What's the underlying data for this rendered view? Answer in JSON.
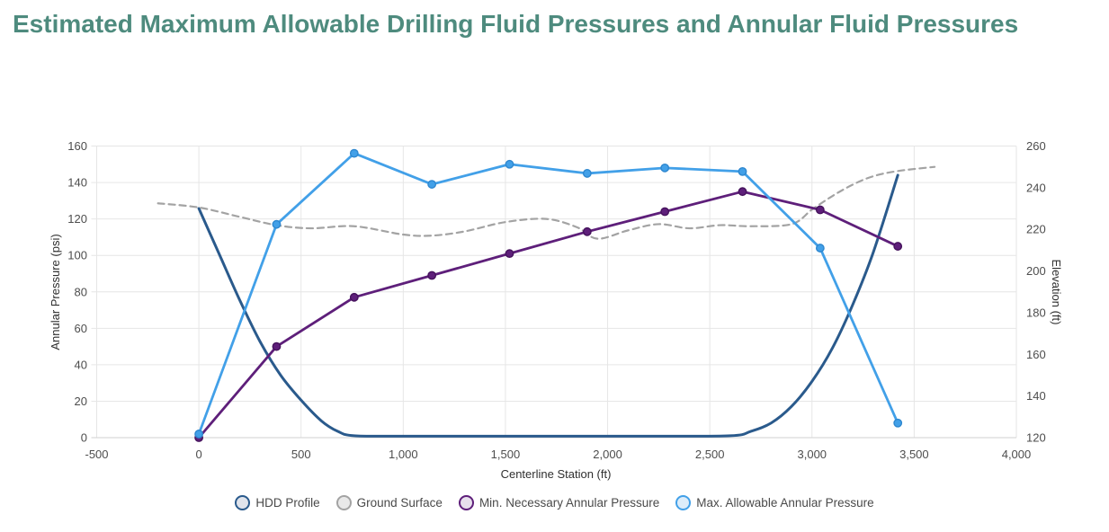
{
  "page": {
    "title": "Estimated Maximum Allowable Drilling Fluid Pressures and Annular Fluid Pressures",
    "title_color": "#4e8b7e",
    "background_color": "#ffffff"
  },
  "chart_data": {
    "type": "line",
    "title": "Estimated Maximum Allowable Drilling Fluid Pressures and Annular Fluid Pressures",
    "grid": true,
    "legend_position": "bottom",
    "x_axis": {
      "label": "Centerline Station (ft)",
      "min": -500,
      "max": 4000,
      "ticks": [
        {
          "v": -500,
          "label": "-500"
        },
        {
          "v": 0,
          "label": "0"
        },
        {
          "v": 500,
          "label": "500"
        },
        {
          "v": 1000,
          "label": "1,000"
        },
        {
          "v": 1500,
          "label": "1,500"
        },
        {
          "v": 2000,
          "label": "2,000"
        },
        {
          "v": 2500,
          "label": "2,500"
        },
        {
          "v": 3000,
          "label": "3,000"
        },
        {
          "v": 3500,
          "label": "3,500"
        },
        {
          "v": 4000,
          "label": "4,000"
        }
      ]
    },
    "y_axis_left": {
      "label": "Annular Pressure (psi)",
      "min": 0,
      "max": 160,
      "ticks": [
        0,
        20,
        40,
        60,
        80,
        100,
        120,
        140,
        160
      ]
    },
    "y_axis_right": {
      "label": "Elevation (ft)",
      "min": 120,
      "max": 260,
      "ticks": [
        120,
        140,
        160,
        180,
        200,
        220,
        240,
        260
      ]
    },
    "colors": {
      "gridline": "#e6e6e6",
      "baseline": "#d2d2d2",
      "tick_text": "#4d4d4d",
      "axis_title_text": "#2f2f2f",
      "legend_text": "#4a4a4a"
    },
    "series": [
      {
        "name": "HDD Profile",
        "axis": "right",
        "color": "#2a5a8c",
        "legend_fill": "#e0e4ec",
        "style": "solid",
        "width": 3,
        "smooth": true,
        "markers": false,
        "points": [
          [
            0,
            230
          ],
          [
            100,
            208
          ],
          [
            200,
            186
          ],
          [
            300,
            166
          ],
          [
            400,
            150
          ],
          [
            500,
            138
          ],
          [
            600,
            128
          ],
          [
            680,
            123
          ],
          [
            760,
            120.9
          ],
          [
            1000,
            120.7
          ],
          [
            1400,
            120.7
          ],
          [
            1800,
            120.7
          ],
          [
            2200,
            120.7
          ],
          [
            2600,
            120.9
          ],
          [
            2700,
            123
          ],
          [
            2800,
            127
          ],
          [
            2900,
            135
          ],
          [
            3000,
            147
          ],
          [
            3100,
            163
          ],
          [
            3200,
            184
          ],
          [
            3300,
            209
          ],
          [
            3420,
            246
          ]
        ]
      },
      {
        "name": "Ground Surface",
        "axis": "right",
        "color": "#a3a3a3",
        "legend_fill": "#e9e9e9",
        "style": "dashed",
        "width": 2.2,
        "smooth": true,
        "markers": false,
        "points": [
          [
            -200,
            232.5
          ],
          [
            0,
            230.5
          ],
          [
            200,
            226
          ],
          [
            380,
            222
          ],
          [
            550,
            220.5
          ],
          [
            760,
            221.5
          ],
          [
            1000,
            217.5
          ],
          [
            1140,
            217
          ],
          [
            1300,
            219
          ],
          [
            1500,
            223.5
          ],
          [
            1700,
            225
          ],
          [
            1850,
            221
          ],
          [
            1950,
            215.5
          ],
          [
            2100,
            219.5
          ],
          [
            2250,
            222.5
          ],
          [
            2400,
            220.5
          ],
          [
            2550,
            222
          ],
          [
            2700,
            221.5
          ],
          [
            2900,
            222.5
          ],
          [
            3000,
            229.5
          ],
          [
            3100,
            236
          ],
          [
            3200,
            241.5
          ],
          [
            3300,
            245.5
          ],
          [
            3420,
            248
          ],
          [
            3600,
            250
          ]
        ]
      },
      {
        "name": "Min. Necessary Annular Pressure",
        "axis": "left",
        "color": "#5e1f7a",
        "marker_stroke": "#45125c",
        "legend_fill": "#e7e0ec",
        "style": "solid",
        "width": 2.8,
        "smooth": false,
        "markers": true,
        "points": [
          [
            0,
            0
          ],
          [
            380,
            50
          ],
          [
            760,
            77
          ],
          [
            1140,
            89
          ],
          [
            1520,
            101
          ],
          [
            1900,
            113
          ],
          [
            2280,
            124
          ],
          [
            2660,
            135
          ],
          [
            3040,
            125
          ],
          [
            3420,
            105
          ]
        ]
      },
      {
        "name": "Max. Allowable Annular Pressure",
        "axis": "left",
        "color": "#42a0e8",
        "marker_stroke": "#2e87cf",
        "legend_fill": "#ddedfa",
        "style": "solid",
        "width": 2.8,
        "smooth": false,
        "markers": true,
        "points": [
          [
            0,
            2
          ],
          [
            380,
            117
          ],
          [
            760,
            156
          ],
          [
            1140,
            139
          ],
          [
            1520,
            150
          ],
          [
            1900,
            145
          ],
          [
            2280,
            148
          ],
          [
            2660,
            146
          ],
          [
            3040,
            104
          ],
          [
            3420,
            8
          ]
        ]
      }
    ]
  }
}
